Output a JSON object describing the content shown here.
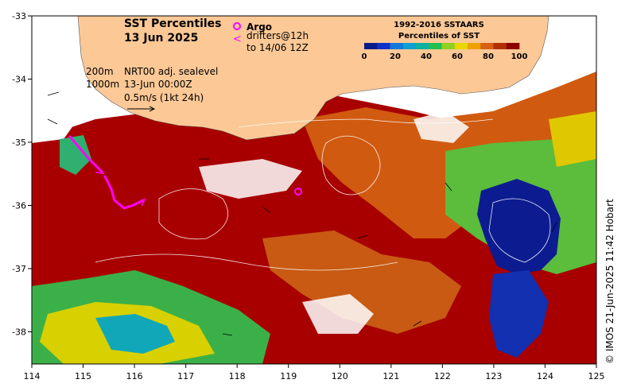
{
  "title": {
    "line1": "SST Percentiles",
    "line2": "13 Jun 2025"
  },
  "argo_label": "Argo",
  "drifters_label": {
    "line1": "drifters@12h",
    "line2": "to 14/06 12Z"
  },
  "colorbar": {
    "title1": "1992-2016 SSTAARS",
    "title2": "Percentiles of SST",
    "ticks": [
      "0",
      "20",
      "40",
      "60",
      "80",
      "100"
    ],
    "colors": [
      "#0a1a8c",
      "#1030c8",
      "#1478d8",
      "#10a0d0",
      "#10b0a0",
      "#20c050",
      "#90d020",
      "#e8d800",
      "#f0a000",
      "#d86010",
      "#b03000",
      "#8c0000"
    ]
  },
  "annotations": {
    "depth200": "200m",
    "depth1000": "1000m",
    "product": "NRT00 adj. sealevel",
    "datetime": "13-Jun 00:00Z",
    "scale": "0.5m/s (1kt 24h)"
  },
  "x_ticks": [
    "114",
    "115",
    "116",
    "117",
    "118",
    "119",
    "120",
    "121",
    "122",
    "123",
    "124",
    "125"
  ],
  "y_ticks": [
    "-33",
    "-34",
    "-35",
    "-36",
    "-37",
    "-38"
  ],
  "credit": "© IMOS 21-Jun-2025 11:42 Hobart",
  "colors": {
    "land": "#fbc896",
    "ocean_missing": "#ffffff"
  }
}
